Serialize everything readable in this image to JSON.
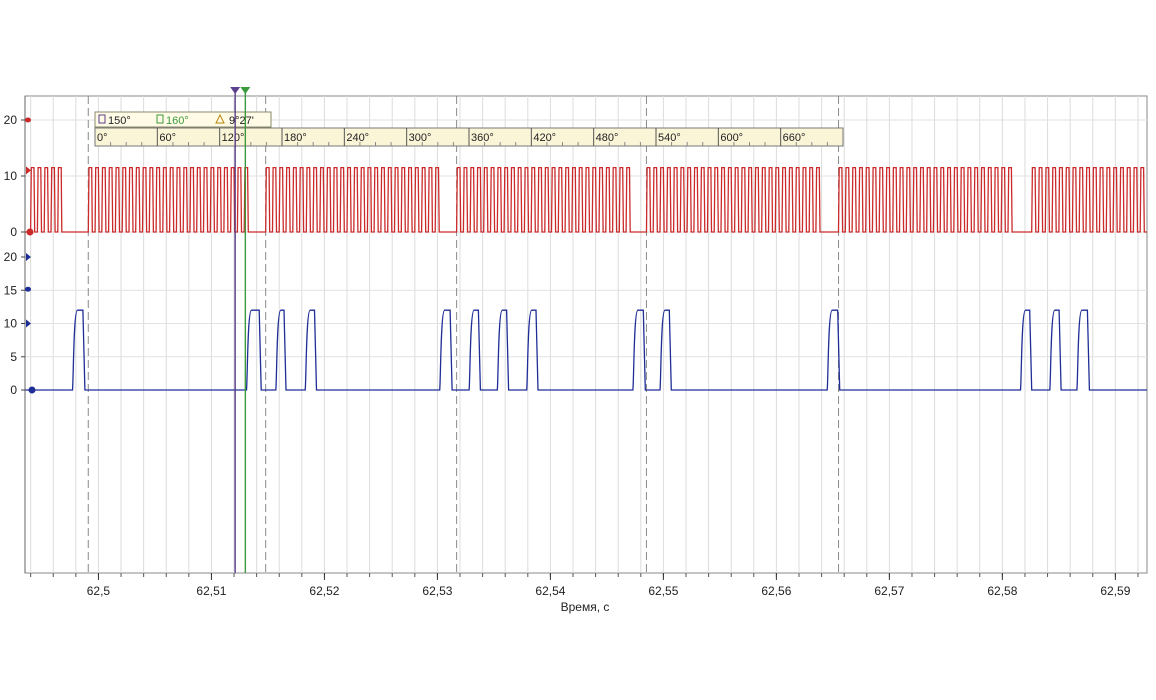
{
  "chart_data": {
    "type": "line",
    "xlabel": "Время, с",
    "xlim": [
      62.4935,
      62.5928
    ],
    "x_ticks": [
      "62,5",
      "62,51",
      "62,52",
      "62,53",
      "62,54",
      "62,55",
      "62,56",
      "62,57",
      "62,58",
      "62,59"
    ],
    "x_tick_values": [
      62.5,
      62.51,
      62.52,
      62.53,
      62.54,
      62.55,
      62.56,
      62.57,
      62.58,
      62.59
    ],
    "grid": true,
    "series": [
      {
        "color": "#cc2a2a",
        "y_ticks": [
          "0",
          "10",
          "20"
        ],
        "y_tick_values": [
          0,
          10,
          20
        ],
        "ylim": [
          0,
          20
        ],
        "high": 11.5,
        "low": 0,
        "signal": "crank sensor pulse train (tooth wheel with gaps)",
        "pulse_period": 0.0006,
        "pulse_width": 0.0003,
        "gap_intervals": [
          [
            62.4968,
            62.4991
          ],
          [
            62.5134,
            62.5148
          ],
          [
            62.5303,
            62.5317
          ],
          [
            62.5471,
            62.5485
          ],
          [
            62.5641,
            62.5655
          ],
          [
            62.5812,
            62.5826
          ]
        ],
        "burst_ranges": [
          [
            62.494,
            62.4968
          ],
          [
            62.4991,
            62.5134
          ],
          [
            62.5148,
            62.5303
          ],
          [
            62.5317,
            62.5471
          ],
          [
            62.5485,
            62.5641
          ],
          [
            62.5655,
            62.5812
          ],
          [
            62.5826,
            62.5928
          ]
        ]
      },
      {
        "color": "#1f2e96",
        "y_ticks": [
          "0",
          "5",
          "10",
          "15",
          "20"
        ],
        "y_tick_values": [
          0,
          5,
          10,
          15,
          20
        ],
        "ylim": [
          0,
          20
        ],
        "high": 12,
        "low": 0,
        "pulses": [
          [
            62.4977,
            62.4988
          ],
          [
            62.5131,
            62.5144
          ],
          [
            62.5157,
            62.5166
          ],
          [
            62.5183,
            62.5193
          ],
          [
            62.5302,
            62.5313
          ],
          [
            62.5328,
            62.5338
          ],
          [
            62.5353,
            62.5363
          ],
          [
            62.5379,
            62.5389
          ],
          [
            62.5473,
            62.5484
          ],
          [
            62.5497,
            62.5507
          ],
          [
            62.5645,
            62.5656
          ],
          [
            62.5816,
            62.5826
          ],
          [
            62.5842,
            62.5852
          ],
          [
            62.5866,
            62.5877
          ]
        ]
      }
    ],
    "cursors": {
      "cursor1_label": "150°",
      "cursor2_label": "160°",
      "delta_label": "9°27'",
      "cursor1_x": 62.5121,
      "cursor2_x": 62.513,
      "cursor1_color": "#5b3f8a",
      "cursor2_color": "#3c9a3c",
      "delta_color": "#b8860b"
    },
    "angle_ruler": {
      "labels": [
        "0°",
        "60°",
        "120°",
        "180°",
        "240°",
        "300°",
        "360°",
        "420°",
        "480°",
        "540°",
        "600°",
        "660°"
      ],
      "start_x": 62.4991,
      "step_x": 0.00559
    },
    "dashed_markers_x": [
      62.4991,
      62.5148,
      62.5317,
      62.5485,
      62.5655
    ]
  }
}
